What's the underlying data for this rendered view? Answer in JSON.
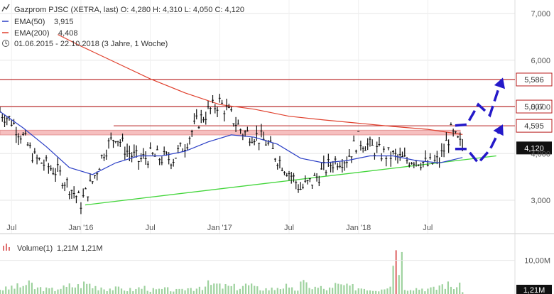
{
  "colors": {
    "ema50": "#2b3fc6",
    "ema200": "#e0412e",
    "support": "#44d63c",
    "resistance": "#b81c1c",
    "zone_fill": "#f6b9b9",
    "arrow": "#2419c9",
    "candle": "#111111",
    "volume_bar": "#9ed29e",
    "volume_spike": "#e07070",
    "last_box": "#111111",
    "grid": "#e6e6e6"
  },
  "legend": {
    "title_line": "Gazprom PJSC (XETRA, last)  O: 4,280  H: 4,310  L: 4,050  C: 4,120",
    "ema50_label": "EMA(50)",
    "ema50_value": "3,915",
    "ema200_label": "EMA(200)",
    "ema200_value": "4,408",
    "period": "01.06.2015 - 22.10.2018   (3 Jahre, 1 Woche)",
    "chart_icon": "chart-line-icon",
    "minus_icon": "dash-icon",
    "clock_icon": "clock-icon"
  },
  "volume_legend": {
    "label": "Volume(1)",
    "value": "1,21M",
    "value2": "1,21M",
    "icon": "bar-chart-icon"
  },
  "chart_data": [
    {
      "type": "line",
      "title": "Gazprom PJSC (XETRA, last)",
      "ylim": [
        2.5,
        7.2
      ],
      "y_ticks": [
        "3,000",
        "4,000",
        "5,000",
        "6,000",
        "7,000"
      ],
      "x_ticks": [
        "Jul",
        "Jan '16",
        "Jul",
        "Jan '17",
        "Jul",
        "Jan '18",
        "Jul"
      ],
      "series": [
        {
          "name": "Gazprom PJSC",
          "x": [
            "2015-06",
            "2015-07",
            "2015-08",
            "2015-09",
            "2015-10",
            "2015-11",
            "2015-12",
            "2016-01",
            "2016-02",
            "2016-03",
            "2016-04",
            "2016-05",
            "2016-06",
            "2016-07",
            "2016-08",
            "2016-09",
            "2016-10",
            "2016-11",
            "2016-12",
            "2017-01",
            "2017-02",
            "2017-03",
            "2017-04",
            "2017-05",
            "2017-06",
            "2017-07",
            "2017-08",
            "2017-09",
            "2017-10",
            "2017-11",
            "2017-12",
            "2018-01",
            "2018-02",
            "2018-03",
            "2018-04",
            "2018-05",
            "2018-06",
            "2018-07",
            "2018-08",
            "2018-09",
            "2018-10"
          ],
          "values": [
            4.9,
            4.7,
            4.35,
            3.9,
            3.75,
            3.6,
            3.3,
            2.95,
            3.4,
            4.05,
            4.4,
            4.05,
            3.85,
            3.95,
            3.9,
            3.9,
            4.2,
            4.65,
            4.9,
            5.1,
            4.8,
            4.45,
            4.4,
            4.25,
            3.9,
            3.6,
            3.25,
            3.4,
            3.65,
            3.85,
            3.9,
            4.3,
            4.15,
            4.0,
            3.95,
            3.85,
            3.9,
            3.75,
            3.85,
            4.45,
            4.12
          ]
        },
        {
          "name": "EMA(50)",
          "x": [
            "2015-06",
            "2015-08",
            "2015-10",
            "2015-12",
            "2016-02",
            "2016-04",
            "2016-06",
            "2016-08",
            "2016-10",
            "2016-12",
            "2017-02",
            "2017-04",
            "2017-06",
            "2017-08",
            "2017-10",
            "2017-12",
            "2018-02",
            "2018-04",
            "2018-06",
            "2018-08",
            "2018-10"
          ],
          "values": [
            4.9,
            4.55,
            4.15,
            3.7,
            3.55,
            3.8,
            3.95,
            3.95,
            4.05,
            4.25,
            4.4,
            4.35,
            4.2,
            3.9,
            3.8,
            3.85,
            3.95,
            3.95,
            3.85,
            3.8,
            3.915
          ]
        },
        {
          "name": "EMA(200)",
          "x": [
            "2015-11",
            "2016-01",
            "2016-04",
            "2016-07",
            "2016-10",
            "2017-01",
            "2017-04",
            "2017-07",
            "2017-10",
            "2018-01",
            "2018-04",
            "2018-07",
            "2018-10"
          ],
          "values": [
            6.55,
            6.3,
            5.95,
            5.6,
            5.3,
            5.05,
            4.95,
            4.8,
            4.72,
            4.65,
            4.58,
            4.52,
            4.408
          ]
        }
      ],
      "levels": [
        {
          "label": "5,586",
          "value": 5.586
        },
        {
          "label": "5,007",
          "value": 5.007
        },
        {
          "label": "4,595",
          "value": 4.595
        }
      ],
      "last_price": {
        "label": "4,120",
        "value": 4.12
      },
      "zone": {
        "from": 4.4,
        "to": 4.5
      },
      "support_line": {
        "x": [
          "2016-01",
          "2018-12"
        ],
        "values": [
          2.9,
          3.95
        ]
      },
      "projection": {
        "x": [
          "2018-09",
          "2018-10",
          "2018-11",
          "2018-12",
          "2019-01"
        ],
        "upper": [
          4.6,
          4.62,
          5.05,
          4.82,
          5.58
        ],
        "lower": [
          4.1,
          4.1,
          3.8,
          4.08,
          4.58
        ]
      }
    },
    {
      "type": "bar",
      "title": "Volume(1)",
      "y_ticks": [
        "10,00M"
      ],
      "last_value": "1,21M",
      "x": [
        "2015-06",
        "2015-07",
        "2015-08",
        "2015-09",
        "2015-10",
        "2015-11",
        "2015-12",
        "2016-01",
        "2016-02",
        "2016-03",
        "2016-04",
        "2016-05",
        "2016-06",
        "2016-07",
        "2016-08",
        "2016-09",
        "2016-10",
        "2016-11",
        "2016-12",
        "2017-01",
        "2017-02",
        "2017-03",
        "2017-04",
        "2017-05",
        "2017-06",
        "2017-07",
        "2017-08",
        "2017-09",
        "2017-10",
        "2017-11",
        "2017-12",
        "2018-01",
        "2018-02",
        "2018-03",
        "2018-04",
        "2018-05",
        "2018-06",
        "2018-07",
        "2018-08",
        "2018-09",
        "2018-10"
      ],
      "values": [
        1.8,
        2.5,
        3.2,
        2.0,
        1.6,
        2.2,
        2.8,
        3.5,
        2.6,
        2.0,
        1.8,
        1.5,
        2.2,
        1.4,
        1.6,
        1.2,
        2.0,
        2.8,
        3.2,
        2.6,
        2.4,
        3.0,
        2.0,
        1.8,
        2.6,
        1.6,
        3.4,
        2.2,
        1.8,
        3.0,
        2.4,
        2.2,
        1.6,
        2.8,
        13.0,
        2.4,
        2.0,
        1.8,
        3.2,
        2.6,
        1.21
      ]
    }
  ]
}
